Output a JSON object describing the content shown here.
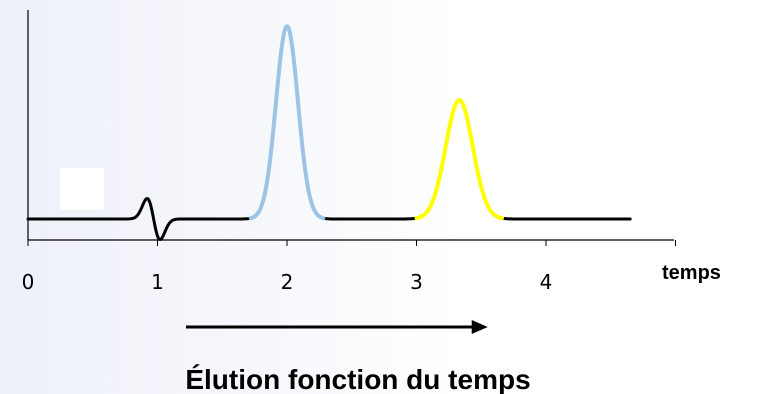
{
  "chart_data": {
    "type": "line",
    "xlabel": "temps",
    "caption": "Élution fonction du temps",
    "x_ticks": [
      "0",
      "1",
      "2",
      "3",
      "4"
    ],
    "xlim": [
      0,
      5.0
    ],
    "ylim": [
      -0.15,
      1.0
    ],
    "grid": false,
    "legend": "none",
    "baseline_color": "#000000",
    "arrow_color": "#000000",
    "arrow_span": [
      1.22,
      3.55
    ],
    "features": [
      {
        "name": "solvent-blip",
        "center": 0.97,
        "amplitude": 0.1,
        "color": "#000000"
      },
      {
        "name": "peak-1",
        "center": 2.0,
        "height": 0.94,
        "color": "#9dc3e6"
      },
      {
        "name": "peak-2",
        "center": 3.33,
        "height": 0.58,
        "color": "#ffff00"
      }
    ]
  }
}
